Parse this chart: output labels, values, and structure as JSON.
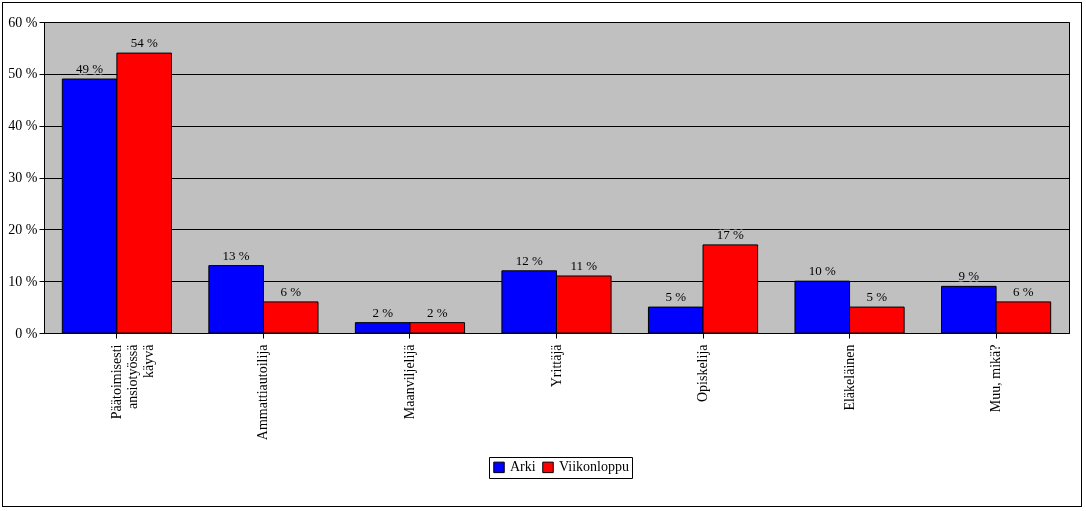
{
  "chart_data": {
    "type": "bar",
    "categories": [
      "Päätoimisesti ansiotyössä käyvä",
      "Ammattiautoilija",
      "Maanviljelijä",
      "Yrittäjä",
      "Opiskelija",
      "Eläkeläinen",
      "Muu, mikä?"
    ],
    "series": [
      {
        "name": "Arki",
        "color": "#0000ff",
        "values": [
          49,
          13,
          2,
          12,
          5,
          10,
          9
        ],
        "value_labels": [
          "49 %",
          "13 %",
          "2 %",
          "12 %",
          "5 %",
          "10 %",
          "9 %"
        ]
      },
      {
        "name": "Viikonloppu",
        "color": "#ff0000",
        "values": [
          54,
          6,
          2,
          11,
          17,
          5,
          6
        ],
        "value_labels": [
          "54 %",
          "6 %",
          "2 %",
          "11 %",
          "17 %",
          "5 %",
          "6 %"
        ]
      }
    ],
    "ylim": [
      0,
      60
    ],
    "yticks": [
      {
        "value": 0,
        "label": "0 %"
      },
      {
        "value": 10,
        "label": "10 %"
      },
      {
        "value": 20,
        "label": "20 %"
      },
      {
        "value": 30,
        "label": "30 %"
      },
      {
        "value": 40,
        "label": "40 %"
      },
      {
        "value": 50,
        "label": "50 %"
      },
      {
        "value": 60,
        "label": "60 %"
      }
    ],
    "grid": "y",
    "legend": "bottom"
  }
}
